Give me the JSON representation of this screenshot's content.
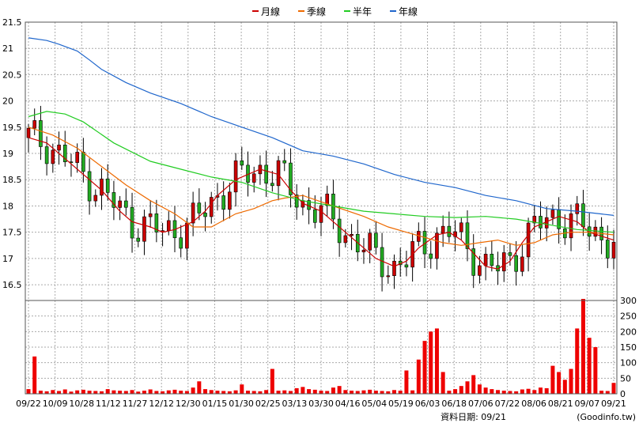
{
  "legend": {
    "items": [
      {
        "label": "月線",
        "color": "#cc0000"
      },
      {
        "label": "季線",
        "color": "#ee6a00"
      },
      {
        "label": "半年",
        "color": "#22cc22"
      },
      {
        "label": "年線",
        "color": "#1f66cc"
      }
    ]
  },
  "footer": {
    "date_label": "資料日期: 09/21",
    "source": "(Goodinfo.tw)"
  },
  "chart_data": {
    "type": "candlestick",
    "price_axis": {
      "ticks": [
        "21.5",
        "21",
        "20.5",
        "20",
        "19.5",
        "19",
        "18.5",
        "18",
        "17.5",
        "17",
        "16.5"
      ],
      "ylim": [
        16.2,
        21.5
      ]
    },
    "volume_axis": {
      "ticks": [
        "300",
        "250",
        "200",
        "150",
        "100",
        "50",
        "0"
      ],
      "ylim": [
        0,
        300
      ]
    },
    "x_ticks": [
      "09/22",
      "10/09",
      "10/28",
      "11/12",
      "11/27",
      "12/12",
      "12/30",
      "01/15",
      "01/30",
      "02/25",
      "03/13",
      "03/30",
      "04/16",
      "05/04",
      "05/19",
      "06/03",
      "06/18",
      "07/06",
      "07/22",
      "08/06",
      "08/21",
      "09/07",
      "09/21"
    ],
    "grid": true,
    "colors": {
      "up": "#cc0000",
      "down": "#22aa22",
      "volume": "#ee0000"
    },
    "series": [
      {
        "name": "月線",
        "color": "#cc0000",
        "values": [
          [
            0,
            19.3
          ],
          [
            3,
            19.2
          ],
          [
            6,
            18.9
          ],
          [
            9,
            18.6
          ],
          [
            12,
            18.3
          ],
          [
            15,
            17.9
          ],
          [
            17,
            17.7
          ],
          [
            20,
            17.6
          ],
          [
            22,
            17.5
          ],
          [
            24,
            17.55
          ],
          [
            27,
            17.7
          ],
          [
            29,
            17.9
          ],
          [
            31,
            18.2
          ],
          [
            34,
            18.5
          ],
          [
            38,
            18.7
          ],
          [
            41,
            18.6
          ],
          [
            43,
            18.3
          ],
          [
            45,
            18.05
          ],
          [
            48,
            17.9
          ],
          [
            50,
            17.7
          ],
          [
            53,
            17.4
          ],
          [
            57,
            17.0
          ],
          [
            60,
            16.85
          ],
          [
            62,
            16.95
          ],
          [
            64,
            17.2
          ],
          [
            67,
            17.45
          ],
          [
            69,
            17.5
          ],
          [
            71,
            17.35
          ],
          [
            73,
            17.1
          ],
          [
            75,
            16.85
          ],
          [
            77,
            16.8
          ],
          [
            79,
            16.95
          ],
          [
            81,
            17.3
          ],
          [
            83,
            17.6
          ],
          [
            85,
            17.7
          ],
          [
            87,
            17.8
          ],
          [
            90,
            17.7
          ],
          [
            92,
            17.5
          ],
          [
            96,
            17.35
          ]
        ]
      },
      {
        "name": "季線",
        "color": "#ee6a00",
        "values": [
          [
            0,
            19.5
          ],
          [
            4,
            19.35
          ],
          [
            8,
            19.1
          ],
          [
            12,
            18.75
          ],
          [
            16,
            18.4
          ],
          [
            20,
            18.1
          ],
          [
            24,
            17.85
          ],
          [
            27,
            17.6
          ],
          [
            30,
            17.6
          ],
          [
            34,
            17.85
          ],
          [
            37,
            17.95
          ],
          [
            40,
            18.1
          ],
          [
            42,
            18.15
          ],
          [
            45,
            18.2
          ],
          [
            50,
            18.0
          ],
          [
            55,
            17.8
          ],
          [
            59,
            17.6
          ],
          [
            62,
            17.5
          ],
          [
            65,
            17.4
          ],
          [
            68,
            17.3
          ],
          [
            71,
            17.25
          ],
          [
            74,
            17.3
          ],
          [
            77,
            17.35
          ],
          [
            80,
            17.25
          ],
          [
            83,
            17.3
          ],
          [
            86,
            17.45
          ],
          [
            89,
            17.5
          ],
          [
            92,
            17.5
          ],
          [
            96,
            17.45
          ]
        ]
      },
      {
        "name": "半年",
        "color": "#22cc22",
        "values": [
          [
            0,
            19.7
          ],
          [
            3,
            19.8
          ],
          [
            6,
            19.75
          ],
          [
            9,
            19.6
          ],
          [
            14,
            19.2
          ],
          [
            20,
            18.85
          ],
          [
            25,
            18.7
          ],
          [
            30,
            18.55
          ],
          [
            35,
            18.45
          ],
          [
            40,
            18.25
          ],
          [
            45,
            18.1
          ],
          [
            50,
            18.0
          ],
          [
            55,
            17.9
          ],
          [
            60,
            17.85
          ],
          [
            65,
            17.8
          ],
          [
            70,
            17.78
          ],
          [
            75,
            17.8
          ],
          [
            80,
            17.75
          ],
          [
            85,
            17.65
          ],
          [
            90,
            17.55
          ],
          [
            96,
            17.5
          ]
        ]
      },
      {
        "name": "年線",
        "color": "#1f66cc",
        "values": [
          [
            0,
            21.2
          ],
          [
            3,
            21.15
          ],
          [
            5,
            21.08
          ],
          [
            8,
            20.95
          ],
          [
            10,
            20.78
          ],
          [
            12,
            20.6
          ],
          [
            16,
            20.35
          ],
          [
            20,
            20.15
          ],
          [
            25,
            19.95
          ],
          [
            30,
            19.7
          ],
          [
            35,
            19.5
          ],
          [
            40,
            19.3
          ],
          [
            45,
            19.05
          ],
          [
            50,
            18.95
          ],
          [
            55,
            18.8
          ],
          [
            60,
            18.6
          ],
          [
            65,
            18.45
          ],
          [
            70,
            18.35
          ],
          [
            75,
            18.2
          ],
          [
            80,
            18.1
          ],
          [
            85,
            17.95
          ],
          [
            90,
            17.9
          ],
          [
            96,
            17.82
          ]
        ]
      }
    ],
    "volume_values": [
      15,
      120,
      10,
      8,
      12,
      9,
      14,
      7,
      11,
      13,
      10,
      9,
      8,
      15,
      11,
      10,
      9,
      12,
      7,
      10,
      14,
      9,
      8,
      11,
      13,
      10,
      9,
      20,
      40,
      15,
      12,
      10,
      9,
      8,
      11,
      30,
      10,
      9,
      8,
      12,
      14,
      10,
      11,
      9,
      18,
      22,
      15,
      13,
      10,
      9,
      20,
      25,
      12,
      10,
      9,
      11,
      13,
      10,
      9,
      8,
      12,
      10,
      14,
      11,
      9,
      18,
      30,
      20,
      12,
      10,
      15,
      25,
      40,
      60,
      30,
      20,
      15,
      12,
      10,
      9,
      8,
      14,
      16,
      12,
      20,
      18,
      30,
      25,
      40,
      80,
      120,
      35,
      22,
      15,
      10,
      9
    ],
    "volume_highlights": [
      [
        40,
        80
      ],
      [
        62,
        75
      ],
      [
        64,
        110
      ],
      [
        65,
        170
      ],
      [
        66,
        200
      ],
      [
        67,
        210
      ],
      [
        68,
        70
      ],
      [
        86,
        90
      ],
      [
        87,
        70
      ],
      [
        88,
        45
      ],
      [
        90,
        210
      ],
      [
        91,
        305
      ],
      [
        92,
        180
      ],
      [
        93,
        150
      ],
      [
        96,
        35
      ]
    ]
  }
}
